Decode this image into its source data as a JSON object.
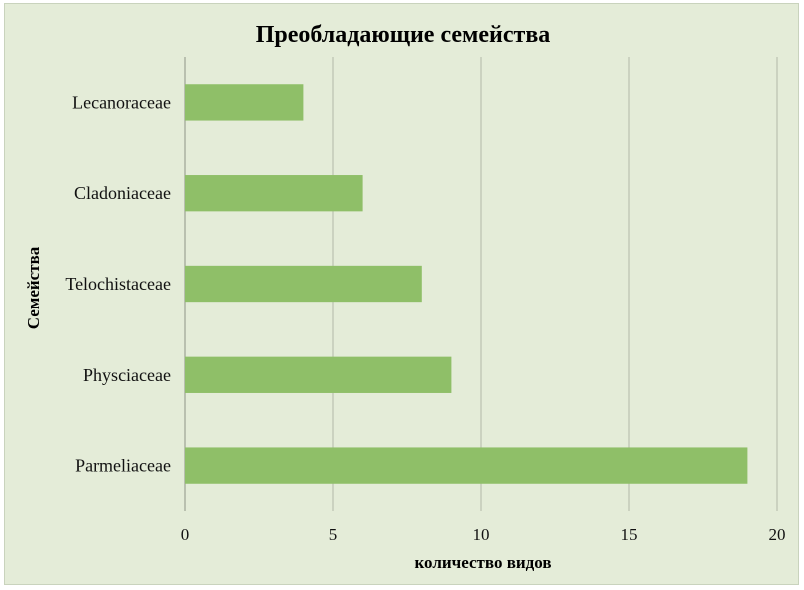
{
  "chart_data": {
    "type": "bar",
    "orientation": "horizontal",
    "title": "Преобладающие семейства",
    "xlabel": "количество видов",
    "ylabel": "Семейства",
    "categories": [
      "Lecanoraceae",
      "Cladoniaceae",
      "Telochistaceae",
      "Physciaceae",
      "Parmeliaceae"
    ],
    "values": [
      4,
      6,
      8,
      9,
      19
    ],
    "xlim": [
      0,
      20
    ],
    "xticks": [
      0,
      5,
      10,
      15,
      20
    ],
    "grid": true,
    "legend": "none",
    "colors": {
      "bar": "#8fbf68",
      "background": "#e4ecd8"
    }
  }
}
